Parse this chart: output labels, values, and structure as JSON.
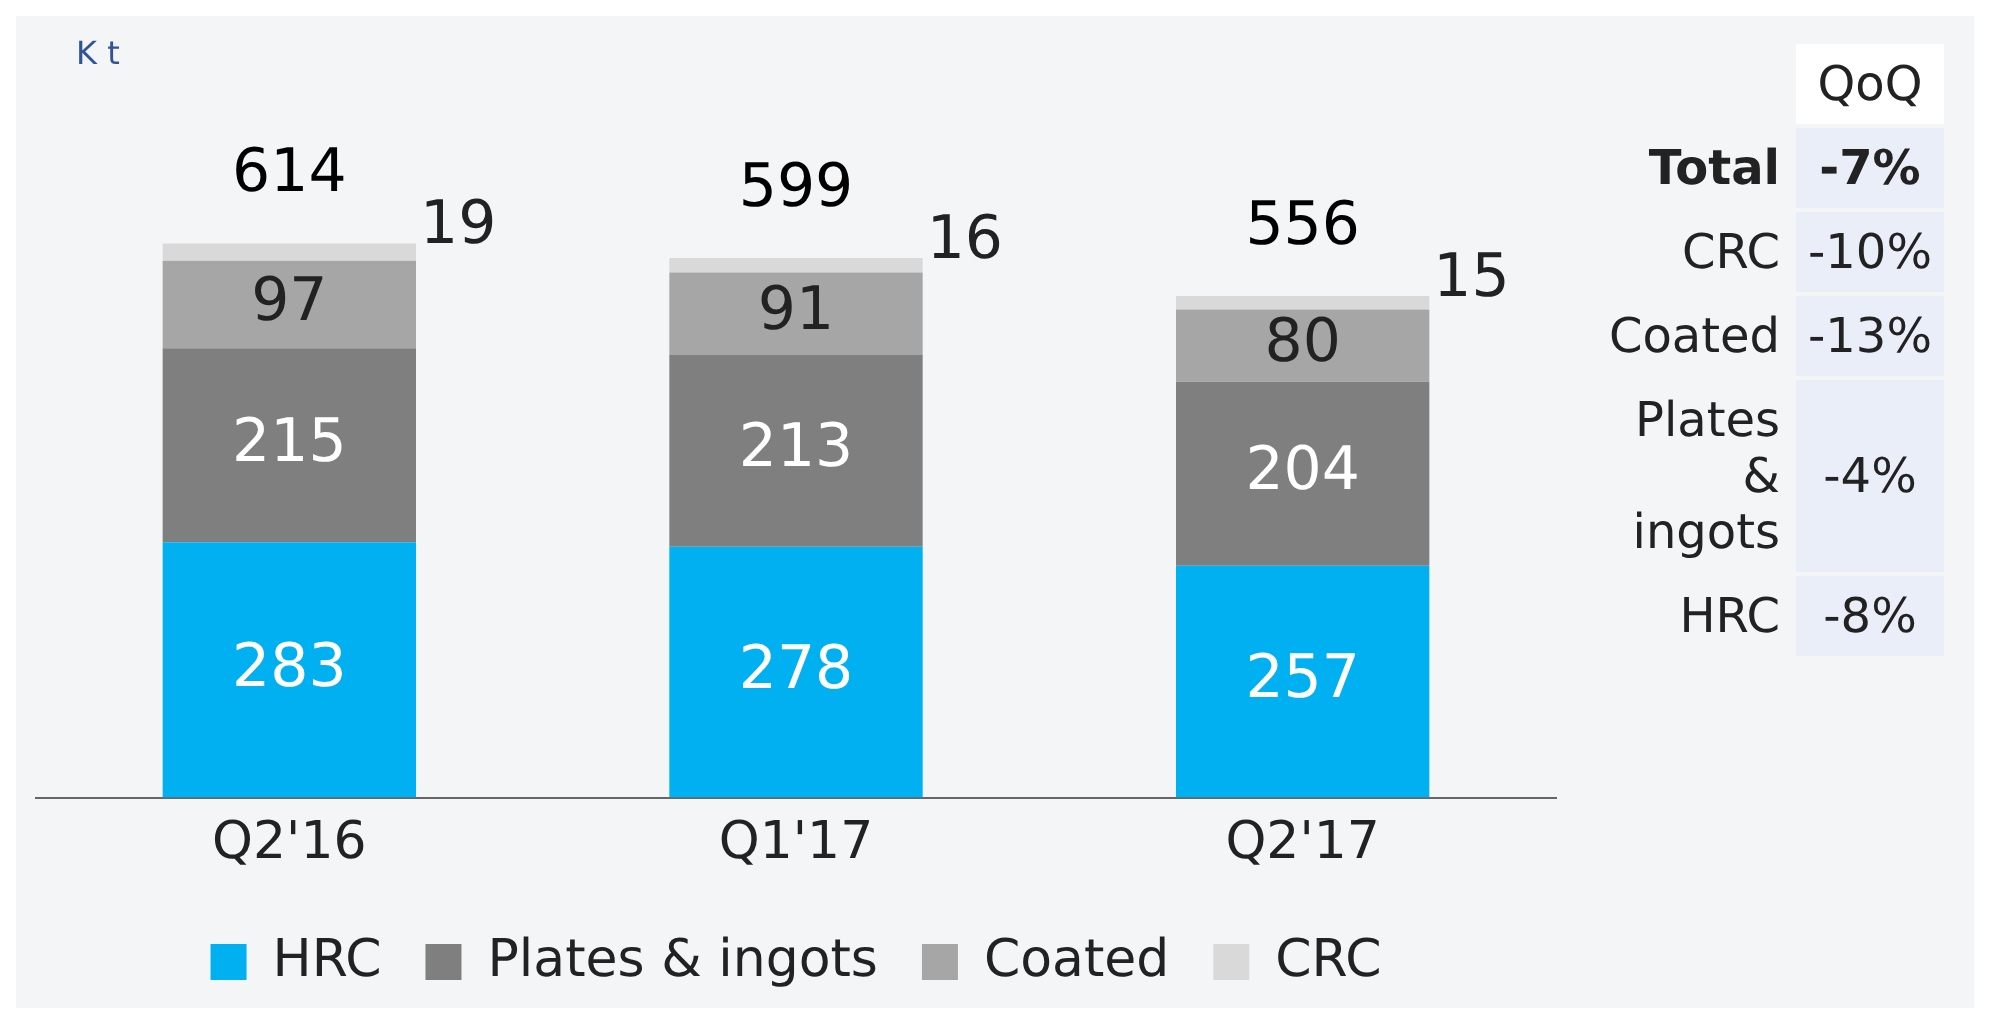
{
  "chart_data": [
    {
      "type": "bar",
      "ylabel": "K t",
      "stacked": true,
      "data_labels": true,
      "legend": "bottom",
      "categories": [
        "Q2'16",
        "Q1'17",
        "Q2'17"
      ],
      "series": [
        {
          "name": "HRC",
          "color": "#00b0f0",
          "values": [
            283,
            278,
            257
          ]
        },
        {
          "name": "Plates & ingots",
          "color": "#7f7f7f",
          "values": [
            215,
            213,
            204
          ]
        },
        {
          "name": "Coated",
          "color": "#a6a6a6",
          "values": [
            97,
            91,
            80
          ]
        },
        {
          "name": "CRC",
          "color": "#d9d9d9",
          "values": [
            19,
            16,
            15
          ]
        }
      ],
      "totals": [
        "614",
        "599",
        "556"
      ]
    },
    {
      "type": "other",
      "title": "QoQ",
      "categories": [
        "Total",
        "CRC",
        "Coated",
        "Plates & ingots",
        "HRC"
      ],
      "value_labels": [
        "-7%",
        "-10%",
        "-13%",
        "-4%",
        "-8%"
      ]
    }
  ]
}
